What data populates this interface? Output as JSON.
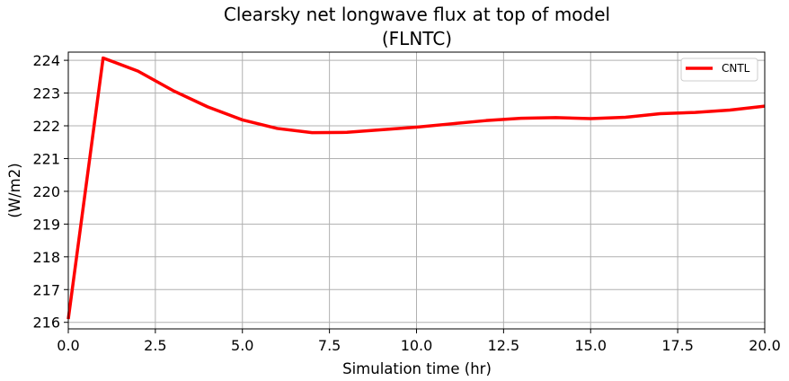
{
  "chart_data": {
    "type": "line",
    "title_line1": "Clearsky net longwave flux at top of model",
    "title_line2": "(FLNTC)",
    "xlabel": "Simulation time (hr)",
    "ylabel": "(W/m2)",
    "xlim": [
      0,
      20
    ],
    "ylim": [
      215.8,
      224.25
    ],
    "xticks": [
      0,
      2.5,
      5,
      7.5,
      10,
      12.5,
      15,
      17.5,
      20
    ],
    "xtick_labels": [
      "0.0",
      "2.5",
      "5.0",
      "7.5",
      "10.0",
      "12.5",
      "15.0",
      "17.5",
      "20.0"
    ],
    "yticks": [
      216,
      217,
      218,
      219,
      220,
      221,
      222,
      223,
      224
    ],
    "ytick_labels": [
      "216",
      "217",
      "218",
      "219",
      "220",
      "221",
      "222",
      "223",
      "224"
    ],
    "grid": true,
    "legend_position": "top-right",
    "series": [
      {
        "name": "CNTL",
        "color": "#ff0000",
        "x": [
          0,
          1,
          2,
          3,
          4,
          5,
          6,
          7,
          8,
          9,
          10,
          11,
          12,
          13,
          14,
          15,
          16,
          17,
          18,
          19,
          20
        ],
        "y": [
          216.1,
          224.07,
          223.67,
          223.08,
          222.58,
          222.18,
          221.92,
          221.79,
          221.8,
          221.88,
          221.96,
          222.06,
          222.16,
          222.23,
          222.25,
          222.22,
          222.26,
          222.37,
          222.41,
          222.48,
          222.6
        ]
      }
    ]
  }
}
